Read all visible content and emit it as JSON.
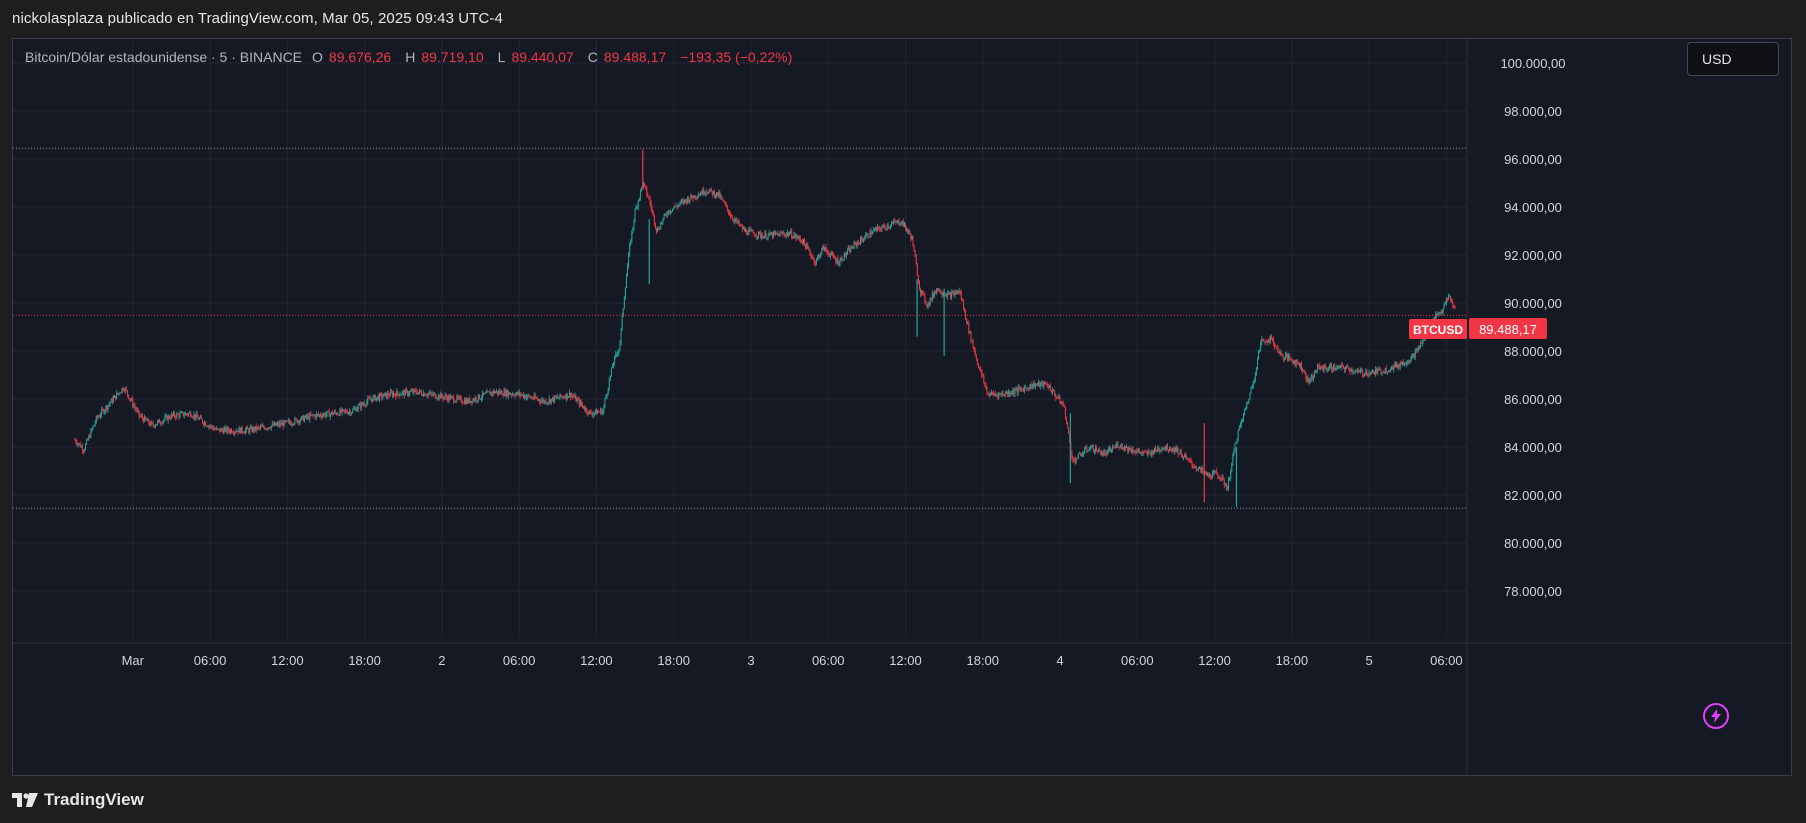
{
  "header": {
    "publish_line": "nickolasplaza publicado en TradingView.com, Mar 05, 2025 09:43 UTC-4"
  },
  "legend": {
    "symbol": "Bitcoin/Dólar estadounidense · 5 · BINANCE",
    "open_key": "O",
    "open": "89.676,26",
    "high_key": "H",
    "high": "89.719,10",
    "low_key": "L",
    "low": "89.440,07",
    "close_key": "C",
    "close": "89.488,17",
    "change": "−193,35 (−0,22%)"
  },
  "currency_button": {
    "label": "USD"
  },
  "price_tag": {
    "ticker": "BTCUSD",
    "value": "89.488,17"
  },
  "footer": {
    "brand": "TradingView"
  },
  "colors": {
    "up": "#26a69a",
    "down": "#f23645",
    "background": "#151924",
    "grid": "#232733",
    "accent_flash": "#e040fb"
  },
  "icons": {
    "flash": "lightning-icon",
    "logo": "tradingview-logo-icon"
  },
  "chart_data": {
    "type": "candlestick",
    "interval": "5",
    "exchange": "BINANCE",
    "ylim": [
      76000,
      101000
    ],
    "yticks": [
      "100.000,00",
      "98.000,00",
      "96.000,00",
      "94.000,00",
      "92.000,00",
      "90.000,00",
      "88.000,00",
      "86.000,00",
      "84.000,00",
      "82.000,00",
      "80.000,00",
      "78.000,00"
    ],
    "ytick_values": [
      100000,
      98000,
      96000,
      94000,
      92000,
      90000,
      88000,
      86000,
      84000,
      82000,
      80000,
      78000
    ],
    "x_hour_range": [
      -9.3,
      103.6
    ],
    "xticks": [
      {
        "label": "Mar",
        "h": 0
      },
      {
        "label": "06:00",
        "h": 6
      },
      {
        "label": "12:00",
        "h": 12
      },
      {
        "label": "18:00",
        "h": 18
      },
      {
        "label": "2",
        "h": 24
      },
      {
        "label": "06:00",
        "h": 30
      },
      {
        "label": "12:00",
        "h": 36
      },
      {
        "label": "18:00",
        "h": 42
      },
      {
        "label": "3",
        "h": 48
      },
      {
        "label": "06:00",
        "h": 54
      },
      {
        "label": "12:00",
        "h": 60
      },
      {
        "label": "18:00",
        "h": 66
      },
      {
        "label": "4",
        "h": 72
      },
      {
        "label": "06:00",
        "h": 78
      },
      {
        "label": "12:00",
        "h": 84
      },
      {
        "label": "18:00",
        "h": 90
      },
      {
        "label": "5",
        "h": 96
      },
      {
        "label": "06:00",
        "h": 102
      }
    ],
    "reference_lines": [
      96450,
      81450
    ],
    "last_price": 89488.17,
    "price_path": [
      [
        -4.5,
        84300
      ],
      [
        -3.8,
        83900
      ],
      [
        -2.8,
        85200
      ],
      [
        -2.0,
        85700
      ],
      [
        -0.7,
        86500
      ],
      [
        0.5,
        85300
      ],
      [
        1.5,
        84900
      ],
      [
        3.0,
        85300
      ],
      [
        4.5,
        85400
      ],
      [
        6.5,
        84700
      ],
      [
        9.0,
        84700
      ],
      [
        12.0,
        85000
      ],
      [
        14.0,
        85300
      ],
      [
        17.0,
        85500
      ],
      [
        18.5,
        86000
      ],
      [
        20.0,
        86200
      ],
      [
        22.0,
        86300
      ],
      [
        24.0,
        86100
      ],
      [
        26.0,
        85900
      ],
      [
        28.0,
        86300
      ],
      [
        30.0,
        86200
      ],
      [
        32.0,
        85900
      ],
      [
        34.0,
        86200
      ],
      [
        35.5,
        85400
      ],
      [
        36.5,
        85500
      ],
      [
        37.3,
        87500
      ],
      [
        37.8,
        88200
      ],
      [
        38.2,
        90500
      ],
      [
        38.6,
        92400
      ],
      [
        39.0,
        93800
      ],
      [
        39.6,
        95000
      ],
      [
        40.1,
        94300
      ],
      [
        40.7,
        93000
      ],
      [
        41.5,
        93800
      ],
      [
        43.0,
        94300
      ],
      [
        44.5,
        94700
      ],
      [
        45.5,
        94500
      ],
      [
        46.5,
        93600
      ],
      [
        47.5,
        93000
      ],
      [
        49.0,
        92800
      ],
      [
        51.0,
        92900
      ],
      [
        52.0,
        92600
      ],
      [
        53.0,
        91700
      ],
      [
        53.6,
        92300
      ],
      [
        54.8,
        91700
      ],
      [
        56.0,
        92400
      ],
      [
        57.5,
        93000
      ],
      [
        59.0,
        93300
      ],
      [
        59.7,
        93400
      ],
      [
        60.5,
        92700
      ],
      [
        61.1,
        90600
      ],
      [
        61.7,
        89900
      ],
      [
        62.4,
        90600
      ],
      [
        63.4,
        90300
      ],
      [
        64.2,
        90500
      ],
      [
        65.0,
        88700
      ],
      [
        65.6,
        87500
      ],
      [
        66.4,
        86200
      ],
      [
        67.5,
        86200
      ],
      [
        69.0,
        86400
      ],
      [
        70.0,
        86600
      ],
      [
        71.0,
        86600
      ],
      [
        72.3,
        85700
      ],
      [
        73.0,
        83400
      ],
      [
        74.3,
        84000
      ],
      [
        75.5,
        83700
      ],
      [
        76.5,
        84100
      ],
      [
        77.5,
        83900
      ],
      [
        78.7,
        83700
      ],
      [
        80.0,
        84000
      ],
      [
        81.0,
        83900
      ],
      [
        82.0,
        83400
      ],
      [
        82.7,
        83100
      ],
      [
        83.5,
        82800
      ],
      [
        84.2,
        82900
      ],
      [
        85.0,
        82300
      ],
      [
        85.7,
        84400
      ],
      [
        86.3,
        85400
      ],
      [
        87.0,
        86700
      ],
      [
        87.6,
        88400
      ],
      [
        88.4,
        88500
      ],
      [
        89.2,
        87800
      ],
      [
        89.8,
        87700
      ],
      [
        90.7,
        87400
      ],
      [
        91.3,
        86700
      ],
      [
        92.0,
        87300
      ],
      [
        93.2,
        87300
      ],
      [
        94.2,
        87300
      ],
      [
        95.2,
        87100
      ],
      [
        96.2,
        87100
      ],
      [
        97.2,
        87200
      ],
      [
        98.2,
        87400
      ],
      [
        99.3,
        87700
      ],
      [
        100.3,
        88500
      ],
      [
        101.0,
        89400
      ],
      [
        101.7,
        89700
      ],
      [
        102.2,
        90300
      ],
      [
        102.7,
        89700
      ]
    ],
    "spikes": [
      [
        39.6,
        96400,
        94700
      ],
      [
        40.1,
        90800,
        93500
      ],
      [
        60.9,
        88600,
        91000
      ],
      [
        72.8,
        82500,
        85400
      ],
      [
        83.2,
        85000,
        81700
      ],
      [
        85.7,
        81500,
        84000
      ],
      [
        63.0,
        87800,
        90600
      ]
    ]
  }
}
